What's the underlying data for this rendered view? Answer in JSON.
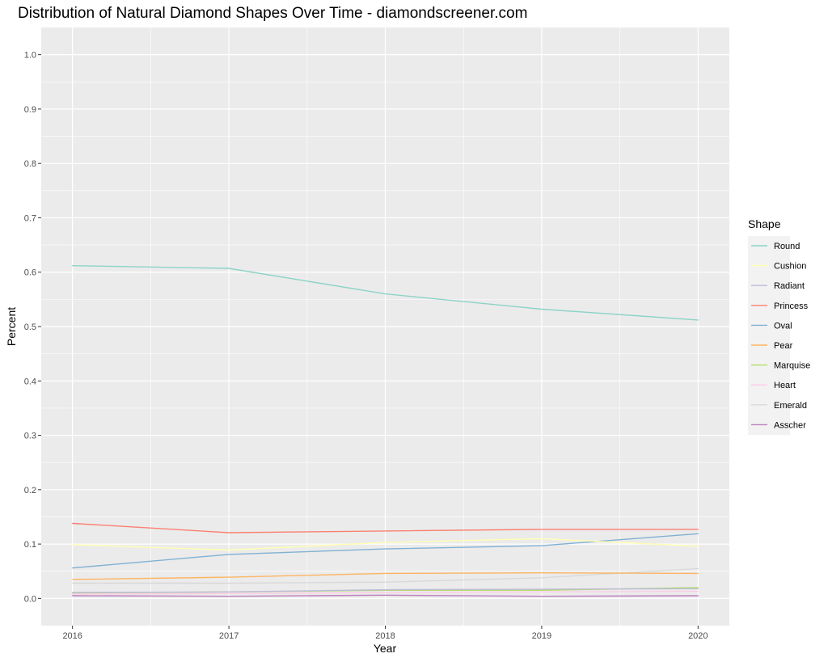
{
  "chart_data": {
    "type": "line",
    "title": "Distribution of Natural Diamond Shapes Over Time - diamondscreener.com",
    "xlabel": "Year",
    "ylabel": "Percent",
    "x": [
      2016,
      2017,
      2018,
      2019,
      2020
    ],
    "x_tick_labels": [
      "2016",
      "2017",
      "2018",
      "2019",
      "2020"
    ],
    "y_ticks": [
      0.0,
      0.1,
      0.2,
      0.3,
      0.4,
      0.5,
      0.6,
      0.7,
      0.8,
      0.9,
      1.0
    ],
    "y_tick_labels": [
      "0.0",
      "0.1",
      "0.2",
      "0.3",
      "0.4",
      "0.5",
      "0.6",
      "0.7",
      "0.8",
      "0.9",
      "1.0"
    ],
    "xlim": [
      2015.8,
      2020.2
    ],
    "ylim": [
      -0.05,
      1.05
    ],
    "grid": true,
    "legend_title": "Shape",
    "legend_position": "right",
    "series": [
      {
        "name": "Round",
        "color": "#8DD3C7",
        "values": [
          0.612,
          0.607,
          0.56,
          0.532,
          0.512
        ]
      },
      {
        "name": "Cushion",
        "color": "#FFFFB3",
        "values": [
          0.099,
          0.089,
          0.103,
          0.11,
          0.096
        ]
      },
      {
        "name": "Radiant",
        "color": "#BEBADA",
        "values": [
          0.011,
          0.012,
          0.016,
          0.017,
          0.018
        ]
      },
      {
        "name": "Princess",
        "color": "#FB8072",
        "values": [
          0.138,
          0.121,
          0.124,
          0.127,
          0.127
        ]
      },
      {
        "name": "Oval",
        "color": "#80B1D3",
        "values": [
          0.056,
          0.081,
          0.091,
          0.097,
          0.119
        ]
      },
      {
        "name": "Pear",
        "color": "#FDB462",
        "values": [
          0.035,
          0.039,
          0.046,
          0.047,
          0.046
        ]
      },
      {
        "name": "Marquise",
        "color": "#B3DE69",
        "values": [
          0.01,
          0.012,
          0.015,
          0.015,
          0.02
        ]
      },
      {
        "name": "Heart",
        "color": "#FCCDE5",
        "values": [
          0.008,
          0.009,
          0.011,
          0.012,
          0.013
        ]
      },
      {
        "name": "Emerald",
        "color": "#D9D9D9",
        "values": [
          0.028,
          0.028,
          0.03,
          0.038,
          0.055
        ]
      },
      {
        "name": "Asscher",
        "color": "#BC80BD",
        "values": [
          0.005,
          0.004,
          0.006,
          0.004,
          0.005
        ]
      }
    ]
  },
  "colors": {
    "panel_background": "#EBEBEB",
    "grid_major": "#FFFFFF",
    "legend_background": "#F2F2F2"
  }
}
